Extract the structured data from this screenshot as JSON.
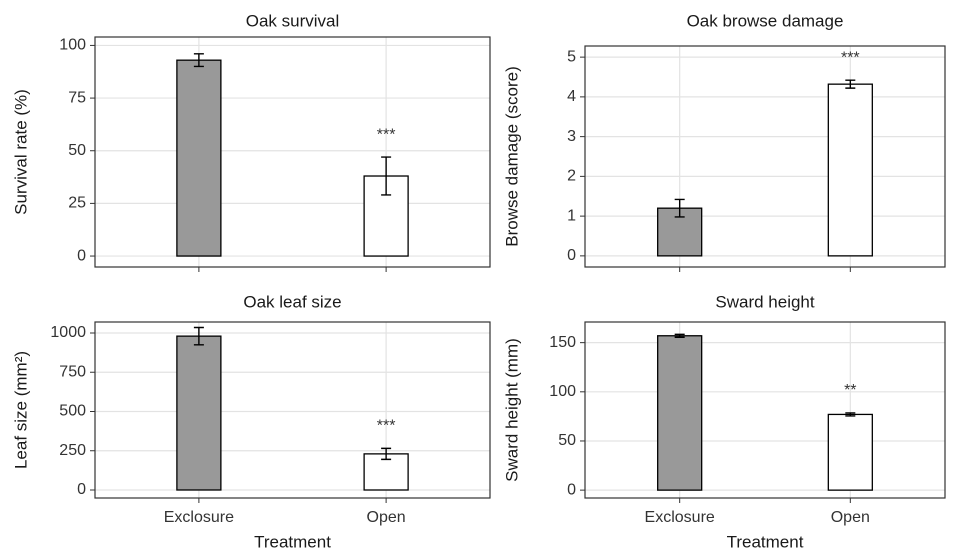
{
  "chart_data": [
    {
      "type": "bar",
      "title": "Oak survival",
      "ylabel": "Survival rate (%)",
      "categories": [
        "Exclosure",
        "Open"
      ],
      "values": [
        93,
        38
      ],
      "errors": [
        3,
        9
      ],
      "colors": [
        "#999999",
        "#ffffff"
      ],
      "significance": "***",
      "ylim": [
        -5.2,
        104
      ],
      "yticks": [
        0,
        25,
        50,
        75,
        100
      ],
      "grid": true,
      "show_xticklabels": false
    },
    {
      "type": "bar",
      "title": "Oak browse damage",
      "ylabel": "Browse damage (score)",
      "categories": [
        "Exclosure",
        "Open"
      ],
      "values": [
        1.2,
        4.32
      ],
      "errors": [
        0.22,
        0.1
      ],
      "colors": [
        "#999999",
        "#ffffff"
      ],
      "significance": "***",
      "ylim": [
        -0.28,
        5.28
      ],
      "yticks": [
        0,
        1,
        2,
        3,
        4,
        5
      ],
      "grid": true,
      "show_xticklabels": false
    },
    {
      "type": "bar",
      "title": "Oak leaf size",
      "ylabel": "Leaf size (mm²)",
      "xlabel": "Treatment",
      "categories": [
        "Exclosure",
        "Open"
      ],
      "values": [
        980,
        230
      ],
      "errors": [
        55,
        35
      ],
      "colors": [
        "#999999",
        "#ffffff"
      ],
      "significance": "***",
      "ylim": [
        -51,
        1070
      ],
      "yticks": [
        0,
        250,
        500,
        750,
        1000
      ],
      "grid": true,
      "show_xticklabels": true
    },
    {
      "type": "bar",
      "title": "Sward height",
      "ylabel": "Sward height (mm)",
      "xlabel": "Treatment",
      "categories": [
        "Exclosure",
        "Open"
      ],
      "values": [
        157,
        77
      ],
      "errors": [
        1.5,
        1.5
      ],
      "colors": [
        "#999999",
        "#ffffff"
      ],
      "significance": "**",
      "ylim": [
        -8,
        171
      ],
      "yticks": [
        0,
        50,
        100,
        150
      ],
      "grid": true,
      "show_xticklabels": true
    }
  ]
}
